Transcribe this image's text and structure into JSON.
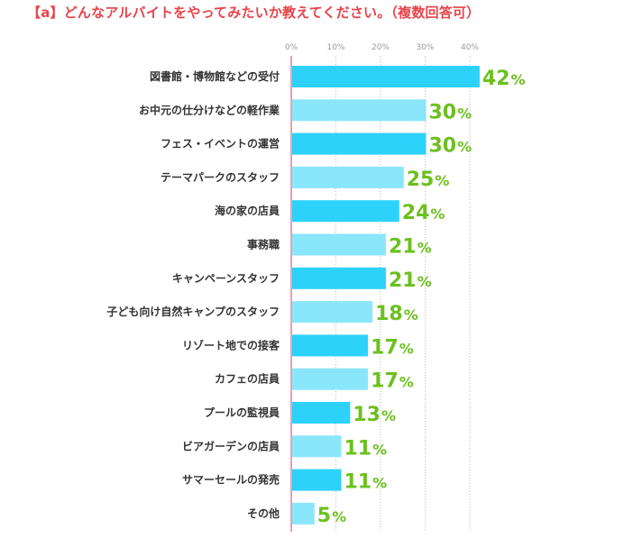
{
  "title": "【a】どんなアルバイトをやってみたいか教えてください。（複数回答可）",
  "colors": {
    "title": "#e8434a",
    "bar_dark": "#2dd2fb",
    "bar_light": "#8ae6fb",
    "value": "#6cc01f",
    "axis": "#eaa0b4",
    "grid": "#bbbbbb"
  },
  "chart_data": {
    "type": "bar",
    "orientation": "horizontal",
    "title": "【a】どんなアルバイトをやってみたいか教えてください。（複数回答可）",
    "xlim": [
      0,
      40
    ],
    "ticks": [
      0,
      10,
      20,
      30,
      40
    ],
    "tick_labels": [
      "0%",
      "10%",
      "20%",
      "30%",
      "40%"
    ],
    "unit": "%",
    "categories": [
      "図書館・博物館などの受付",
      "お中元の仕分けなどの軽作業",
      "フェス・イベントの運営",
      "テーマパークのスタッフ",
      "海の家の店員",
      "事務職",
      "キャンペーンスタッフ",
      "子ども向け自然キャンプのスタッフ",
      "リゾート地での接客",
      "カフェの店員",
      "プールの監視員",
      "ビアガーデンの店員",
      "サマーセールの発売",
      "その他"
    ],
    "values": [
      42,
      30,
      30,
      25,
      24,
      21,
      21,
      18,
      17,
      17,
      13,
      11,
      11,
      5
    ]
  }
}
